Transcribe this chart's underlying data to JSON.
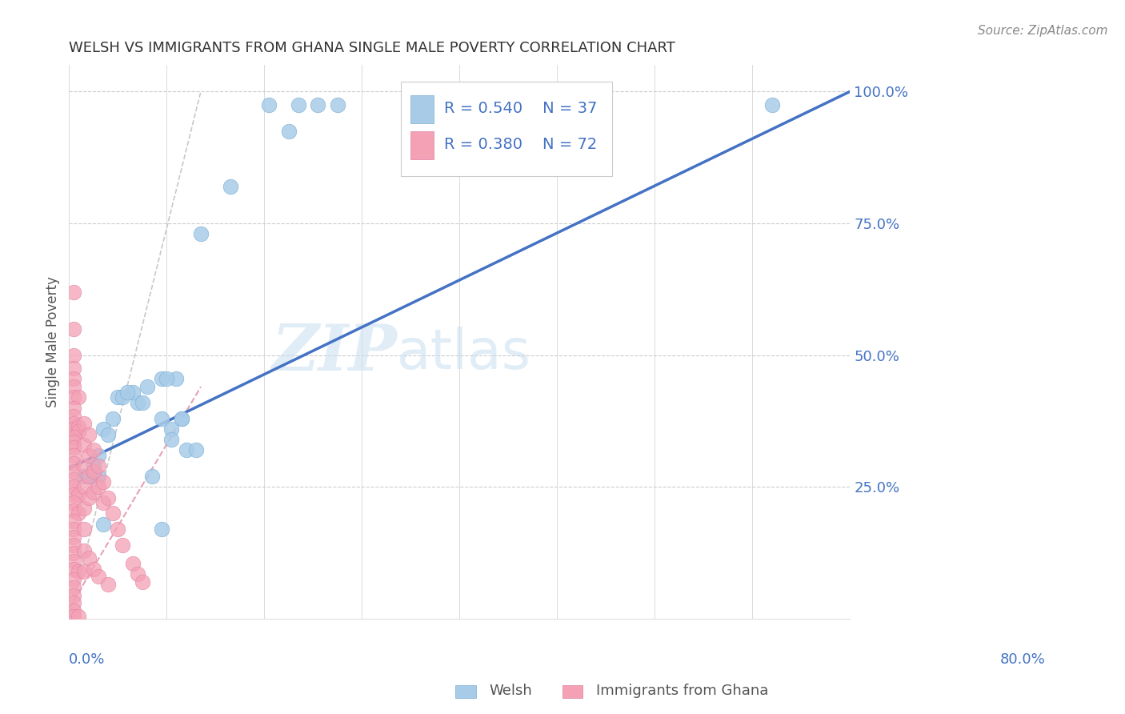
{
  "title": "WELSH VS IMMIGRANTS FROM GHANA SINGLE MALE POVERTY CORRELATION CHART",
  "source": "Source: ZipAtlas.com",
  "ylabel": "Single Male Poverty",
  "xlim": [
    0.0,
    0.8
  ],
  "ylim": [
    0.0,
    1.05
  ],
  "yticks": [
    0.25,
    0.5,
    0.75,
    1.0
  ],
  "ytick_labels": [
    "25.0%",
    "50.0%",
    "75.0%",
    "100.0%"
  ],
  "xtick_labels_left": "0.0%",
  "xtick_labels_right": "80.0%",
  "watermark_zip": "ZIP",
  "watermark_atlas": "atlas",
  "welsh_color": "#a8cce8",
  "ghana_color": "#f4a0b5",
  "welsh_edge": "#7aafd4",
  "ghana_edge": "#e080a0",
  "blue_line_x": [
    0.0,
    0.8
  ],
  "blue_line_y": [
    0.285,
    1.0
  ],
  "pink_line_x": [
    0.0,
    0.14
  ],
  "pink_line_y": [
    0.0,
    1.0
  ],
  "ref_line_x": [
    0.0,
    0.14
  ],
  "ref_line_y": [
    0.0,
    1.0
  ],
  "title_color": "#333333",
  "axis_label_color": "#4472c4",
  "background_color": "#ffffff",
  "grid_color": "#cccccc",
  "legend_R1": "R = 0.540",
  "legend_N1": "N = 37",
  "legend_R2": "R = 0.380",
  "legend_N2": "N = 72",
  "welsh_scatter": [
    [
      0.205,
      0.975
    ],
    [
      0.235,
      0.975
    ],
    [
      0.255,
      0.975
    ],
    [
      0.225,
      0.925
    ],
    [
      0.275,
      0.975
    ],
    [
      0.165,
      0.82
    ],
    [
      0.135,
      0.73
    ],
    [
      0.095,
      0.455
    ],
    [
      0.08,
      0.44
    ],
    [
      0.07,
      0.41
    ],
    [
      0.065,
      0.43
    ],
    [
      0.075,
      0.41
    ],
    [
      0.045,
      0.38
    ],
    [
      0.05,
      0.42
    ],
    [
      0.055,
      0.42
    ],
    [
      0.06,
      0.43
    ],
    [
      0.035,
      0.36
    ],
    [
      0.04,
      0.35
    ],
    [
      0.03,
      0.31
    ],
    [
      0.025,
      0.29
    ],
    [
      0.02,
      0.27
    ],
    [
      0.015,
      0.27
    ],
    [
      0.025,
      0.27
    ],
    [
      0.03,
      0.27
    ],
    [
      0.085,
      0.27
    ],
    [
      0.035,
      0.18
    ],
    [
      0.095,
      0.17
    ],
    [
      0.095,
      0.38
    ],
    [
      0.11,
      0.455
    ],
    [
      0.1,
      0.455
    ],
    [
      0.115,
      0.38
    ],
    [
      0.115,
      0.38
    ],
    [
      0.105,
      0.36
    ],
    [
      0.105,
      0.34
    ],
    [
      0.12,
      0.32
    ],
    [
      0.13,
      0.32
    ],
    [
      0.72,
      0.975
    ]
  ],
  "ghana_scatter": [
    [
      0.005,
      0.62
    ],
    [
      0.005,
      0.55
    ],
    [
      0.005,
      0.5
    ],
    [
      0.005,
      0.475
    ],
    [
      0.005,
      0.455
    ],
    [
      0.005,
      0.44
    ],
    [
      0.005,
      0.42
    ],
    [
      0.01,
      0.42
    ],
    [
      0.005,
      0.4
    ],
    [
      0.005,
      0.385
    ],
    [
      0.005,
      0.37
    ],
    [
      0.005,
      0.36
    ],
    [
      0.01,
      0.365
    ],
    [
      0.01,
      0.355
    ],
    [
      0.005,
      0.345
    ],
    [
      0.005,
      0.335
    ],
    [
      0.005,
      0.325
    ],
    [
      0.005,
      0.31
    ],
    [
      0.005,
      0.295
    ],
    [
      0.005,
      0.28
    ],
    [
      0.005,
      0.265
    ],
    [
      0.005,
      0.25
    ],
    [
      0.005,
      0.235
    ],
    [
      0.01,
      0.235
    ],
    [
      0.005,
      0.22
    ],
    [
      0.005,
      0.205
    ],
    [
      0.01,
      0.2
    ],
    [
      0.005,
      0.185
    ],
    [
      0.005,
      0.17
    ],
    [
      0.005,
      0.155
    ],
    [
      0.005,
      0.14
    ],
    [
      0.005,
      0.125
    ],
    [
      0.005,
      0.11
    ],
    [
      0.005,
      0.095
    ],
    [
      0.01,
      0.09
    ],
    [
      0.005,
      0.075
    ],
    [
      0.005,
      0.06
    ],
    [
      0.005,
      0.045
    ],
    [
      0.005,
      0.03
    ],
    [
      0.005,
      0.015
    ],
    [
      0.005,
      0.005
    ],
    [
      0.01,
      0.005
    ],
    [
      0.015,
      0.37
    ],
    [
      0.015,
      0.33
    ],
    [
      0.015,
      0.29
    ],
    [
      0.015,
      0.25
    ],
    [
      0.015,
      0.21
    ],
    [
      0.015,
      0.17
    ],
    [
      0.015,
      0.13
    ],
    [
      0.015,
      0.09
    ],
    [
      0.02,
      0.35
    ],
    [
      0.02,
      0.31
    ],
    [
      0.02,
      0.27
    ],
    [
      0.02,
      0.23
    ],
    [
      0.025,
      0.32
    ],
    [
      0.025,
      0.28
    ],
    [
      0.025,
      0.24
    ],
    [
      0.03,
      0.29
    ],
    [
      0.03,
      0.25
    ],
    [
      0.035,
      0.26
    ],
    [
      0.035,
      0.22
    ],
    [
      0.04,
      0.23
    ],
    [
      0.045,
      0.2
    ],
    [
      0.05,
      0.17
    ],
    [
      0.055,
      0.14
    ],
    [
      0.065,
      0.105
    ],
    [
      0.07,
      0.085
    ],
    [
      0.075,
      0.07
    ],
    [
      0.02,
      0.115
    ],
    [
      0.025,
      0.095
    ],
    [
      0.03,
      0.08
    ],
    [
      0.04,
      0.065
    ]
  ]
}
